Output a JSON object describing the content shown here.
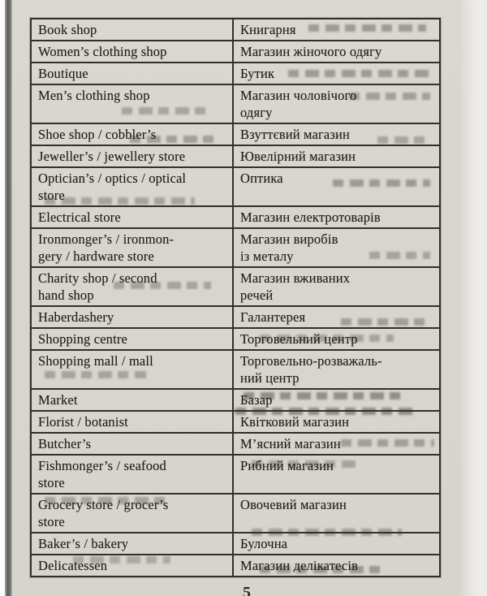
{
  "page": {
    "page_number": "5"
  },
  "colors": {
    "paper": "#d8d5d0",
    "table_border": "#33302b",
    "text": "#211d18",
    "gutter_shadow": "#5d5d5d"
  },
  "table": {
    "columns": [
      "english",
      "ukrainian"
    ],
    "rows": [
      {
        "en": "Book shop",
        "uk": "Книгарня"
      },
      {
        "en": "Women’s clothing shop",
        "uk": "Магазин жіночого одягу"
      },
      {
        "en": "Boutique",
        "uk": "Бутик"
      },
      {
        "en": "Men’s clothing shop",
        "uk": "Магазин чоловічого\nодягу"
      },
      {
        "en": "Shoe shop / cobbler’s",
        "uk": "Взуттєвий магазин"
      },
      {
        "en": "Jeweller’s / jewellery store",
        "uk": "Ювелірний магазин"
      },
      {
        "en": "Optician’s / optics / optical\nstore",
        "uk": "Оптика"
      },
      {
        "en": "Electrical store",
        "uk": "Магазин електротоварів"
      },
      {
        "en": "Ironmonger’s / ironmon-\ngery / hardware store",
        "uk": "Магазин виробів\nіз металу"
      },
      {
        "en": "Charity shop / second\nhand shop",
        "uk": "Магазин вживаних\nречей"
      },
      {
        "en": "Haberdashery",
        "uk": "Галантерея"
      },
      {
        "en": "Shopping centre",
        "uk": "Торговельний центр"
      },
      {
        "en": "Shopping mall / mall",
        "uk": "Торговельно-розважаль-\nний центр"
      },
      {
        "en": "Market",
        "uk": "Базар"
      },
      {
        "en": "Florist / botanist",
        "uk": "Квітковий магазин"
      },
      {
        "en": "Butcher’s",
        "uk": "М’ясний магазин"
      },
      {
        "en": "Fishmonger’s / seafood\nstore",
        "uk": "Рибний магазин"
      },
      {
        "en": "Grocery store / grocer’s\nstore",
        "uk": "Овочевий магазин"
      },
      {
        "en": "Baker’s / bakery",
        "uk": "Булочна"
      },
      {
        "en": "Delicatessen",
        "uk": "Магазин делікатесів"
      }
    ]
  }
}
